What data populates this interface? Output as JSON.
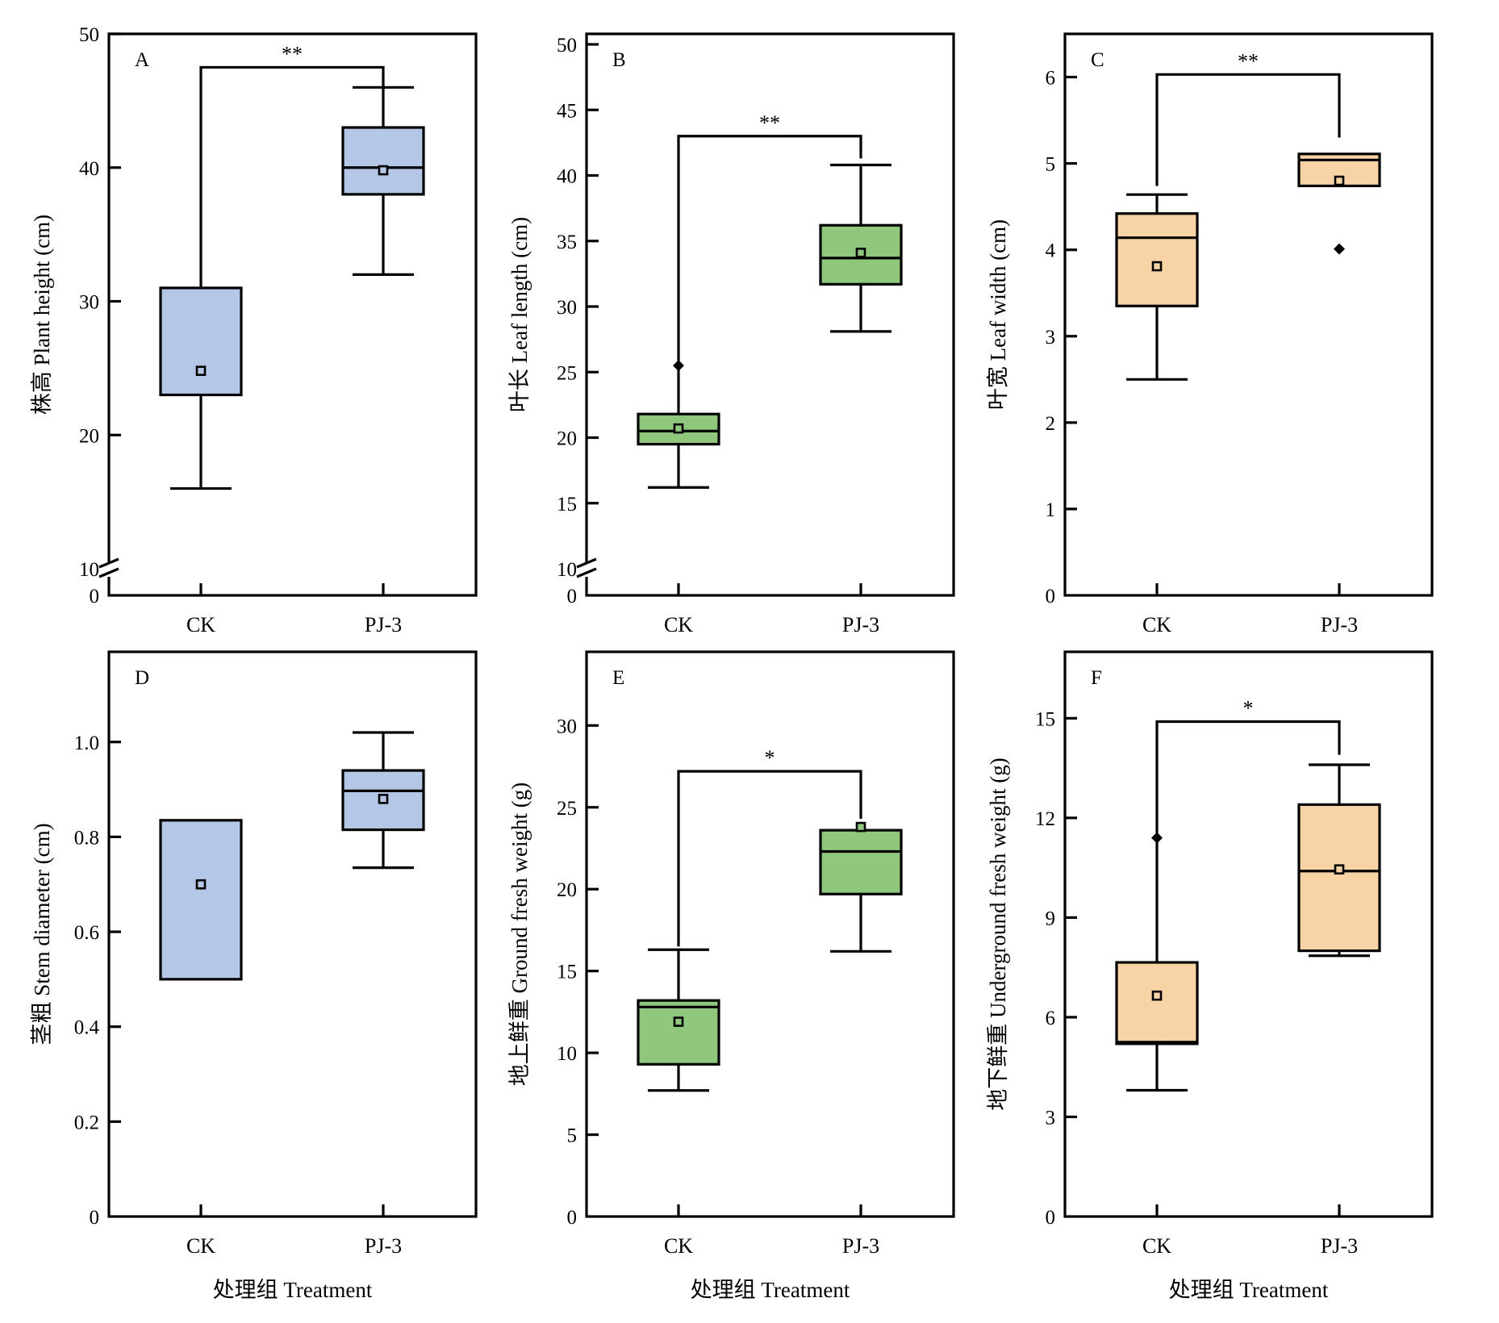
{
  "colors": {
    "blue": "#B4C7E7",
    "green": "#8FC77C",
    "orange": "#F8D3A6",
    "stroke": "#000000"
  },
  "chart_data": [
    {
      "type": "box",
      "panel_label": "A",
      "ylabel": "株高 Plant height (cm)",
      "xlabel": "",
      "categories": [
        "CK",
        "PJ-3"
      ],
      "ylim": [
        0,
        50
      ],
      "axis_break": {
        "from": 0,
        "to": 10
      },
      "yticks": [
        0,
        10,
        20,
        30,
        40,
        50
      ],
      "ytick_labels": [
        "0",
        "10",
        "20",
        "30",
        "40",
        "50"
      ],
      "color": "blue",
      "boxes": [
        {
          "category": "CK",
          "q1": 23,
          "median": null,
          "q3": 31,
          "mean": 24.8,
          "whisker_low": 16,
          "whisker_high": null,
          "outliers": []
        },
        {
          "category": "PJ-3",
          "q1": 38,
          "median": 40,
          "q3": 43,
          "mean": 39.8,
          "whisker_low": 32,
          "whisker_high": 46,
          "outliers": []
        }
      ],
      "significance": {
        "label": "**",
        "y": 47.5,
        "left_end": 31,
        "right_end": 46
      }
    },
    {
      "type": "box",
      "panel_label": "B",
      "ylabel": "叶长 Leaf length (cm)",
      "xlabel": "",
      "categories": [
        "CK",
        "PJ-3"
      ],
      "ylim": [
        0,
        50.8
      ],
      "axis_break": {
        "from": 0,
        "to": 10
      },
      "yticks": [
        0,
        10,
        15,
        20,
        25,
        30,
        35,
        40,
        45,
        50
      ],
      "ytick_labels": [
        "0",
        "10",
        "15",
        "20",
        "25",
        "30",
        "35",
        "40",
        "45",
        "50"
      ],
      "color": "green",
      "boxes": [
        {
          "category": "CK",
          "q1": 19.5,
          "median": 20.5,
          "q3": 21.8,
          "mean": 20.7,
          "whisker_low": 16.2,
          "whisker_high": 22.8,
          "outliers": [
            25.5
          ]
        },
        {
          "category": "PJ-3",
          "q1": 31.7,
          "median": 33.7,
          "q3": 36.2,
          "mean": 34.1,
          "whisker_low": 28.1,
          "whisker_high": 40.8,
          "outliers": []
        }
      ],
      "significance": {
        "label": "**",
        "y": 43,
        "left_end": 22.8,
        "right_end": 41.3
      }
    },
    {
      "type": "box",
      "panel_label": "C",
      "ylabel": "叶宽 Leaf width (cm)",
      "xlabel": "",
      "categories": [
        "CK",
        "PJ-3"
      ],
      "ylim": [
        0,
        6.5
      ],
      "yticks": [
        0,
        1,
        2,
        3,
        4,
        5,
        6
      ],
      "ytick_labels": [
        "0",
        "1",
        "2",
        "3",
        "4",
        "5",
        "6"
      ],
      "color": "orange",
      "boxes": [
        {
          "category": "CK",
          "q1": 3.35,
          "median": 4.14,
          "q3": 4.42,
          "mean": 3.81,
          "whisker_low": 2.5,
          "whisker_high": 4.64,
          "outliers": []
        },
        {
          "category": "PJ-3",
          "q1": 4.74,
          "median": 5.04,
          "q3": 5.11,
          "mean": 4.8,
          "whisker_low": null,
          "whisker_high": null,
          "outliers": [
            4.01
          ]
        }
      ],
      "significance": {
        "label": "**",
        "y": 6.03,
        "left_end": 4.74,
        "right_end": 5.3
      }
    },
    {
      "type": "box",
      "panel_label": "D",
      "ylabel": "茎粗 Stem diameter (cm)",
      "xlabel": "处理组 Treatment",
      "categories": [
        "CK",
        "PJ-3"
      ],
      "ylim": [
        0,
        1.19
      ],
      "yticks": [
        0,
        0.2,
        0.4,
        0.6,
        0.8,
        1.0
      ],
      "ytick_labels": [
        "0",
        "0.2",
        "0.4",
        "0.6",
        "0.8",
        "1.0"
      ],
      "color": "blue",
      "boxes": [
        {
          "category": "CK",
          "q1": 0.5,
          "median": null,
          "q3": 0.835,
          "mean": 0.7,
          "whisker_low": null,
          "whisker_high": null,
          "outliers": []
        },
        {
          "category": "PJ-3",
          "q1": 0.815,
          "median": 0.897,
          "q3": 0.94,
          "mean": 0.88,
          "whisker_low": 0.735,
          "whisker_high": 1.02,
          "outliers": []
        }
      ],
      "significance": null
    },
    {
      "type": "box",
      "panel_label": "E",
      "ylabel": "地上鲜重 Ground fresh weight (g)",
      "xlabel": "处理组 Treatment",
      "categories": [
        "CK",
        "PJ-3"
      ],
      "ylim": [
        0,
        34.5
      ],
      "yticks": [
        0,
        5,
        10,
        15,
        20,
        25,
        30
      ],
      "ytick_labels": [
        "0",
        "5",
        "10",
        "15",
        "20",
        "25",
        "30"
      ],
      "color": "green",
      "boxes": [
        {
          "category": "CK",
          "q1": 9.3,
          "median": 12.8,
          "q3": 13.2,
          "mean": 11.9,
          "whisker_low": 7.7,
          "whisker_high": 16.3,
          "outliers": []
        },
        {
          "category": "PJ-3",
          "q1": 19.7,
          "median": 22.3,
          "q3": 23.6,
          "mean": 23.8,
          "whisker_low": 16.2,
          "whisker_high": null,
          "outliers": []
        }
      ],
      "significance": {
        "label": "*",
        "y": 27.2,
        "left_end": 16.5,
        "right_end": 24.3
      }
    },
    {
      "type": "box",
      "panel_label": "F",
      "ylabel": "地下鲜重 Underground fresh weight (g)",
      "xlabel": "处理组 Treatment",
      "categories": [
        "CK",
        "PJ-3"
      ],
      "ylim": [
        0,
        17
      ],
      "yticks": [
        0,
        3,
        6,
        9,
        12,
        15
      ],
      "ytick_labels": [
        "0",
        "3",
        "6",
        "9",
        "12",
        "15"
      ],
      "color": "orange",
      "boxes": [
        {
          "category": "CK",
          "q1": 5.2,
          "median": 5.25,
          "q3": 7.65,
          "mean": 6.65,
          "whisker_low": 3.8,
          "whisker_high": null,
          "outliers": [
            11.4
          ]
        },
        {
          "category": "PJ-3",
          "q1": 8.0,
          "median": 10.4,
          "q3": 12.4,
          "mean": 10.45,
          "whisker_low": 7.85,
          "whisker_high": 13.6,
          "outliers": []
        }
      ],
      "significance": {
        "label": "*",
        "y": 14.9,
        "left_end": 7.65,
        "right_end": 13.9
      }
    }
  ]
}
